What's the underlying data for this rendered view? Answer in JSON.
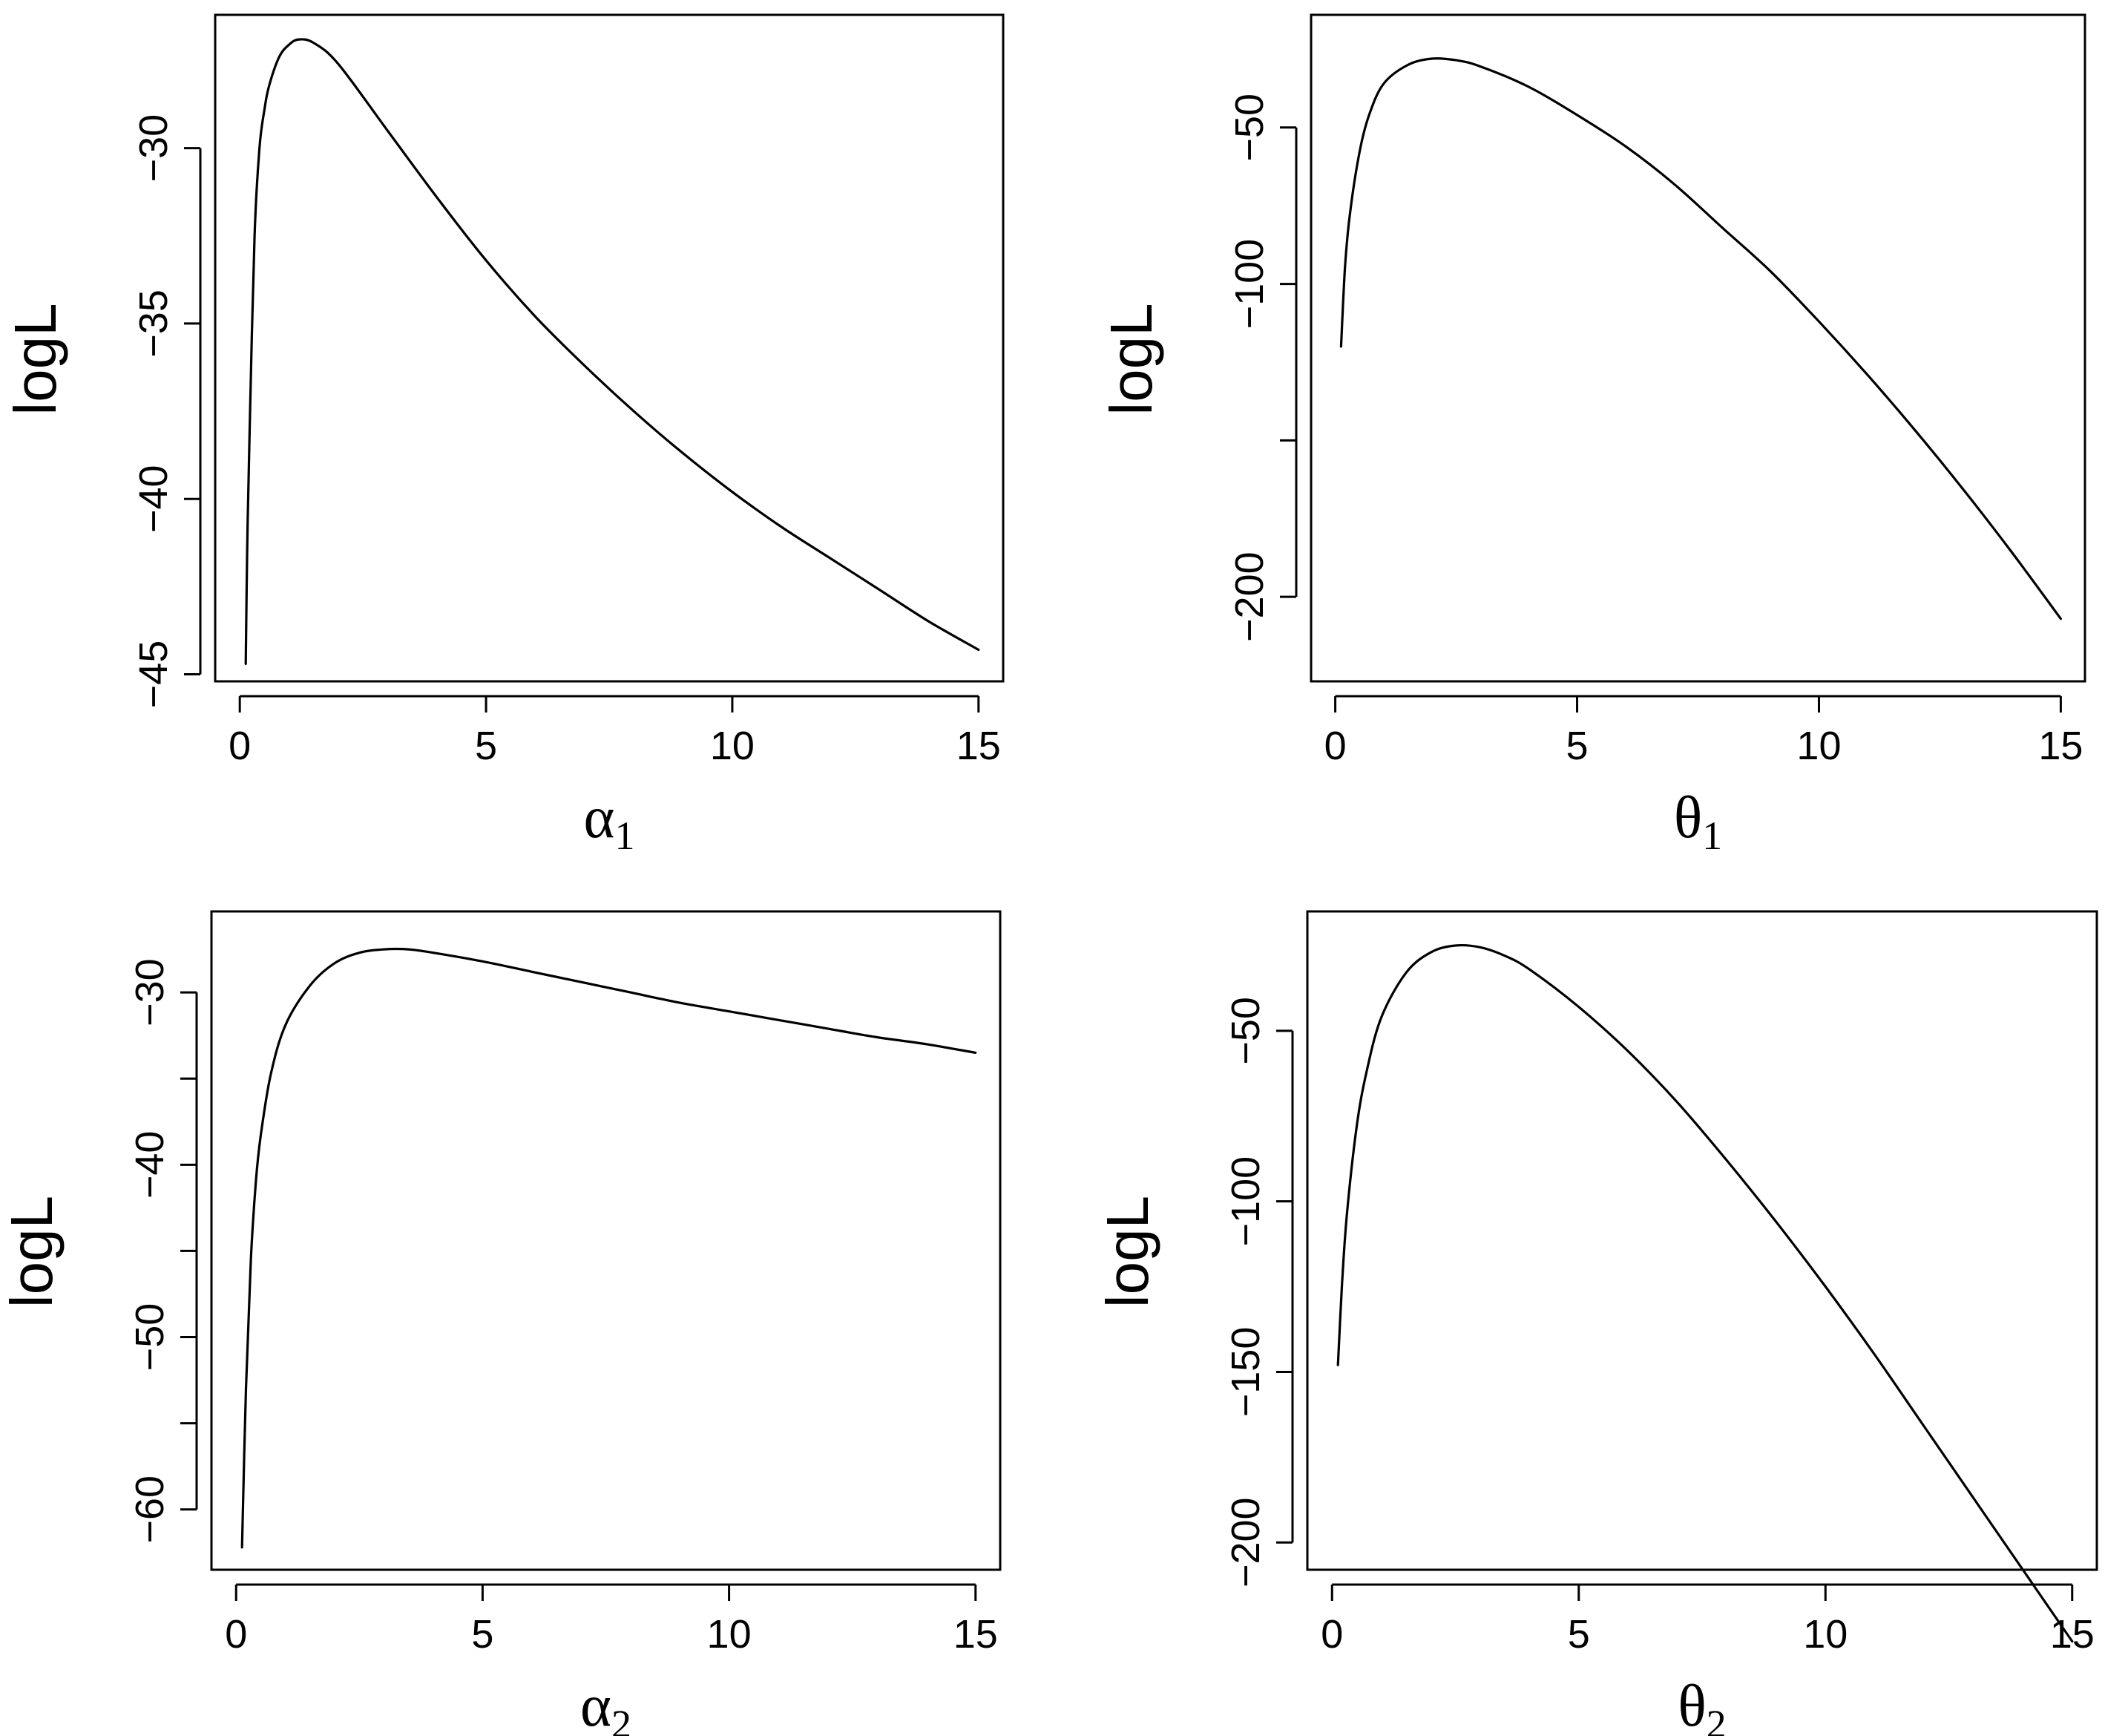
{
  "chart_data": [
    {
      "type": "line",
      "title": "",
      "xlabel": {
        "symbol": "α",
        "subscript": "1"
      },
      "ylabel": "logL",
      "xlim": [
        -0.5,
        15.5
      ],
      "ylim": [
        -45.2,
        -26.2
      ],
      "xticks": [
        0,
        5,
        10,
        15
      ],
      "xtick_labels": [
        "0",
        "5",
        "10",
        "15"
      ],
      "yticks": [
        -45,
        -40,
        -35,
        -30
      ],
      "ytick_labels": [
        "−45",
        "−40",
        "−35",
        "−30"
      ],
      "series": [
        {
          "x": [
            0.12,
            0.15,
            0.2,
            0.3,
            0.4,
            0.5,
            0.6,
            0.8,
            1.0,
            1.2,
            1.5,
            2.0,
            3.0,
            4.0,
            5.0,
            6.0,
            7.0,
            8.0,
            9.0,
            10.0,
            11.0,
            12.0,
            13.0,
            14.0,
            15.0
          ],
          "y": [
            -44.7,
            -41.5,
            -38.0,
            -32.5,
            -30.0,
            -28.9,
            -28.2,
            -27.4,
            -27.05,
            -26.9,
            -27.0,
            -27.6,
            -29.5,
            -31.4,
            -33.2,
            -34.8,
            -36.2,
            -37.5,
            -38.7,
            -39.8,
            -40.8,
            -41.7,
            -42.6,
            -43.5,
            -44.3
          ]
        }
      ]
    },
    {
      "type": "line",
      "title": "",
      "xlabel": {
        "symbol": "θ",
        "subscript": "1"
      },
      "ylabel": "logL",
      "xlim": [
        -0.5,
        15.5
      ],
      "ylim": [
        -227,
        -14
      ],
      "xticks": [
        0,
        5,
        10,
        15
      ],
      "xtick_labels": [
        "0",
        "5",
        "10",
        "15"
      ],
      "yticks": [
        -200,
        -150,
        -100,
        -50
      ],
      "ytick_labels": [
        "−200",
        "",
        "−100",
        "−50"
      ],
      "series": [
        {
          "x": [
            0.12,
            0.2,
            0.3,
            0.5,
            0.7,
            1.0,
            1.5,
            2.0,
            2.5,
            3.0,
            4.0,
            5.0,
            6.0,
            7.0,
            8.0,
            9.0,
            10.0,
            11.0,
            12.0,
            13.0,
            14.0,
            15.0
          ],
          "y": [
            -120,
            -95,
            -78,
            -58,
            -46,
            -36,
            -30,
            -28,
            -28.5,
            -30.5,
            -37,
            -46,
            -56,
            -68,
            -82,
            -96,
            -112,
            -129,
            -147,
            -166,
            -186,
            -207
          ]
        }
      ]
    },
    {
      "type": "line",
      "title": "",
      "xlabel": {
        "symbol": "α",
        "subscript": "2"
      },
      "ylabel": "logL",
      "xlim": [
        -0.5,
        15.5
      ],
      "ylim": [
        -63.5,
        -25.3
      ],
      "xticks": [
        0,
        5,
        10,
        15
      ],
      "xtick_labels": [
        "0",
        "5",
        "10",
        "15"
      ],
      "yticks": [
        -60,
        -55,
        -50,
        -45,
        -40,
        -35,
        -30
      ],
      "ytick_labels": [
        "−60",
        "",
        "−50",
        "",
        "−40",
        "",
        "−30"
      ],
      "series": [
        {
          "x": [
            0.12,
            0.2,
            0.3,
            0.4,
            0.5,
            0.7,
            1.0,
            1.5,
            2.0,
            2.5,
            3.0,
            3.5,
            4.0,
            5.0,
            6.0,
            7.0,
            8.0,
            9.0,
            10.0,
            11.0,
            12.0,
            13.0,
            14.0,
            15.0
          ],
          "y": [
            -62.2,
            -53.0,
            -45.5,
            -41.0,
            -38.3,
            -34.8,
            -31.9,
            -29.6,
            -28.3,
            -27.7,
            -27.5,
            -27.5,
            -27.7,
            -28.2,
            -28.8,
            -29.4,
            -30.0,
            -30.6,
            -31.1,
            -31.6,
            -32.1,
            -32.6,
            -33.0,
            -33.5
          ]
        }
      ]
    },
    {
      "type": "line",
      "title": "",
      "xlabel": {
        "symbol": "θ",
        "subscript": "2"
      },
      "ylabel": "logL",
      "xlim": [
        -0.5,
        15.5
      ],
      "ylim": [
        -208,
        -15
      ],
      "xticks": [
        0,
        5,
        10,
        15
      ],
      "xtick_labels": [
        "0",
        "5",
        "10",
        "15"
      ],
      "yticks": [
        -200,
        -150,
        -100,
        -50
      ],
      "ytick_labels": [
        "−200",
        "−150",
        "−100",
        "−50"
      ],
      "series": [
        {
          "x": [
            0.12,
            0.2,
            0.3,
            0.5,
            0.7,
            1.0,
            1.5,
            2.0,
            2.5,
            3.0,
            3.5,
            4.0,
            5.0,
            6.0,
            7.0,
            8.0,
            9.0,
            10.0,
            11.0,
            12.0,
            13.0,
            14.0,
            15.0
          ],
          "y": [
            -148,
            -125,
            -104,
            -78,
            -62,
            -46,
            -33,
            -27,
            -25,
            -25.5,
            -28,
            -32,
            -43,
            -56,
            -71,
            -88,
            -106,
            -125,
            -145,
            -166,
            -187,
            -208,
            -229
          ]
        }
      ]
    }
  ]
}
